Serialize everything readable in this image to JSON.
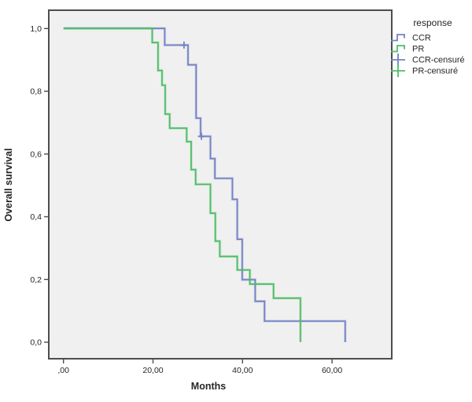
{
  "figure": {
    "background_color": "#ffffff",
    "plot_background_color": "#f0f0f0",
    "border_color": "#4d4d4d",
    "text_color": "#262626"
  },
  "chart_data": {
    "type": "line",
    "subtype": "kaplan-meier-step-survival",
    "title": "",
    "xlabel": "Months",
    "ylabel": "Overall survival",
    "grid": false,
    "xlim": [
      -3.3,
      73.3
    ],
    "ylim": [
      -0.053,
      1.058
    ],
    "x_ticks": [
      {
        "value": 0,
        "label": ",00"
      },
      {
        "value": 20,
        "label": "20,00"
      },
      {
        "value": 40,
        "label": "40,00"
      },
      {
        "value": 60,
        "label": "60,00"
      }
    ],
    "y_ticks": [
      {
        "value": 0.0,
        "label": "0,0"
      },
      {
        "value": 0.2,
        "label": "0,2"
      },
      {
        "value": 0.4,
        "label": "0,4"
      },
      {
        "value": 0.6,
        "label": "0,6"
      },
      {
        "value": 0.8,
        "label": "0,8"
      },
      {
        "value": 1.0,
        "label": "1,0"
      }
    ],
    "legend": {
      "title": "response",
      "position": "top-right-outside",
      "entries": [
        {
          "label": "CCR",
          "glyph": "step-line",
          "color": "#7282c4"
        },
        {
          "label": "PR",
          "glyph": "step-line",
          "color": "#4dbd65"
        },
        {
          "label": "CCR-censuré",
          "glyph": "plus",
          "color": "#7282c4"
        },
        {
          "label": "PR-censuré",
          "glyph": "plus",
          "color": "#4dbd65"
        }
      ]
    },
    "series": [
      {
        "name": "CCR",
        "color": "#7282c4",
        "step_points_month_survival": [
          [
            0,
            1.0
          ],
          [
            22.6,
            0.947
          ],
          [
            27.8,
            0.884
          ],
          [
            29.6,
            0.714
          ],
          [
            30.6,
            0.656
          ],
          [
            32.8,
            0.585
          ],
          [
            33.8,
            0.522
          ],
          [
            37.7,
            0.455
          ],
          [
            38.8,
            0.328
          ],
          [
            39.9,
            0.199
          ],
          [
            42.8,
            0.13
          ],
          [
            44.9,
            0.067
          ],
          [
            62.9,
            0.0
          ]
        ],
        "censored_marks_month_survival": [
          [
            26.9,
            0.947
          ],
          [
            30.8,
            0.656
          ]
        ]
      },
      {
        "name": "PR",
        "color": "#4dbd65",
        "step_points_month_survival": [
          [
            0,
            1.0
          ],
          [
            19.8,
            0.955
          ],
          [
            21.1,
            0.866
          ],
          [
            22.0,
            0.819
          ],
          [
            22.7,
            0.727
          ],
          [
            23.7,
            0.682
          ],
          [
            27.5,
            0.639
          ],
          [
            28.5,
            0.55
          ],
          [
            29.5,
            0.503
          ],
          [
            32.8,
            0.411
          ],
          [
            33.9,
            0.322
          ],
          [
            34.9,
            0.273
          ],
          [
            38.8,
            0.23
          ],
          [
            41.6,
            0.185
          ],
          [
            46.9,
            0.14
          ],
          [
            52.9,
            0.0
          ]
        ],
        "censored_marks_month_survival": []
      }
    ]
  }
}
